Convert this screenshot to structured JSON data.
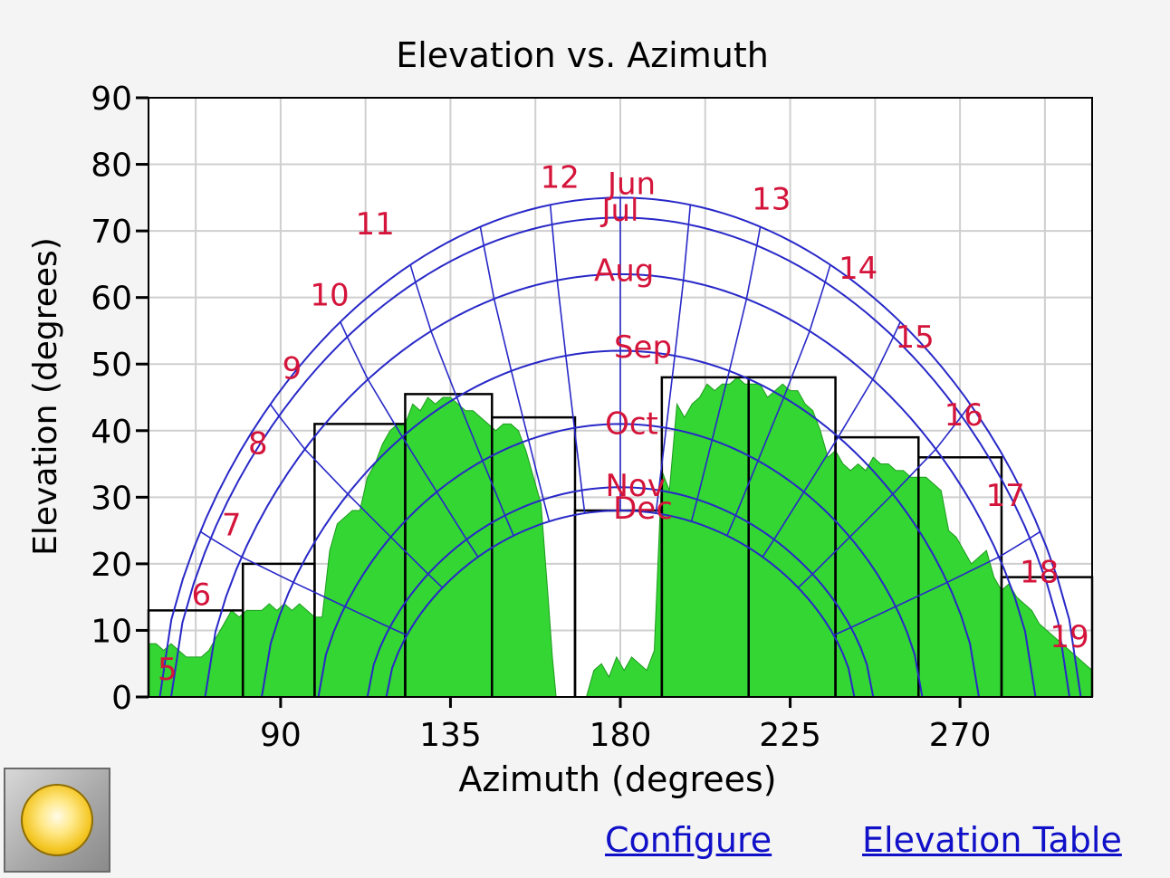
{
  "chart_data": {
    "type": "area",
    "title": "Elevation vs. Azimuth",
    "xlabel": "Azimuth (degrees)",
    "ylabel": "Elevation (degrees)",
    "xlim": [
      55,
      305
    ],
    "ylim": [
      0,
      90
    ],
    "xticks": [
      90,
      135,
      180,
      225,
      270
    ],
    "yticks": [
      0,
      10,
      20,
      30,
      40,
      50,
      60,
      70,
      80,
      90
    ],
    "grid": true,
    "colors": {
      "horizon_fill": "#33d633",
      "sun_path": "#2828c8",
      "label": "#d4143a",
      "grid": "#cfcfcf",
      "bins": "#000000"
    },
    "horizon_profile": {
      "x": [
        55,
        57,
        59,
        61,
        63,
        65,
        67,
        69,
        71,
        73,
        75,
        77,
        79,
        81,
        83,
        85,
        87,
        89,
        91,
        93,
        95,
        97,
        99,
        101,
        103,
        105,
        107,
        109,
        111,
        113,
        115,
        117,
        119,
        121,
        123,
        125,
        127,
        129,
        131,
        133,
        135,
        137,
        139,
        141,
        143,
        145,
        147,
        149,
        151,
        153,
        155,
        157,
        159,
        161,
        162,
        163,
        165,
        167,
        169,
        171,
        173,
        175,
        177,
        179,
        181,
        183,
        185,
        187,
        189,
        191,
        193,
        195,
        197,
        199,
        201,
        203,
        205,
        207,
        209,
        211,
        213,
        215,
        217,
        219,
        221,
        223,
        225,
        227,
        229,
        231,
        233,
        235,
        237,
        239,
        241,
        243,
        245,
        247,
        249,
        251,
        253,
        255,
        257,
        259,
        261,
        263,
        265,
        267,
        269,
        271,
        273,
        275,
        277,
        279,
        281,
        283,
        285,
        287,
        289,
        291,
        293,
        295,
        297,
        299,
        301,
        303,
        305
      ],
      "y": [
        8,
        8,
        7,
        8,
        7,
        6,
        6,
        6,
        7,
        9,
        11,
        13,
        12,
        13,
        13,
        13,
        14,
        13,
        14,
        13,
        14,
        13,
        12,
        12,
        22,
        26,
        27,
        28,
        28,
        33,
        35,
        38,
        40,
        41,
        41,
        44,
        43,
        45,
        44,
        45,
        45,
        44,
        43,
        43,
        42,
        41,
        40,
        41,
        41,
        40,
        37,
        33,
        29,
        14,
        6,
        0,
        0,
        0,
        0,
        0,
        4,
        5,
        3,
        6,
        4,
        6,
        5,
        4,
        7,
        34,
        31,
        44,
        42,
        44,
        45,
        47,
        46,
        47,
        47,
        48,
        47,
        47,
        47,
        45,
        46,
        47,
        46,
        46,
        44,
        43,
        40,
        36,
        37,
        35,
        34,
        35,
        34,
        36,
        35,
        35,
        34,
        34,
        33,
        33,
        33,
        32,
        31,
        25,
        24,
        22,
        20,
        21,
        22,
        18,
        16,
        17,
        15,
        14,
        13,
        11,
        10,
        9,
        8,
        7,
        6,
        5,
        4
      ]
    },
    "horizon_bins": [
      {
        "azimuth": [
          55,
          80
        ],
        "elevation": 13
      },
      {
        "azimuth": [
          80,
          99
        ],
        "elevation": 20
      },
      {
        "azimuth": [
          99,
          123
        ],
        "elevation": 41
      },
      {
        "azimuth": [
          123,
          146
        ],
        "elevation": 45.5
      },
      {
        "azimuth": [
          146,
          168
        ],
        "elevation": 42
      },
      {
        "azimuth": [
          168,
          191
        ],
        "elevation": 28
      },
      {
        "azimuth": [
          191,
          214
        ],
        "elevation": 48
      },
      {
        "azimuth": [
          214,
          237
        ],
        "elevation": 48
      },
      {
        "azimuth": [
          237,
          259
        ],
        "elevation": 39
      },
      {
        "azimuth": [
          259,
          281
        ],
        "elevation": 36
      },
      {
        "azimuth": [
          281,
          305
        ],
        "elevation": 18
      }
    ],
    "sun_paths": [
      {
        "name": "Jun",
        "max_elevation": 75,
        "rise_azimuth": 58,
        "set_azimuth": 302
      },
      {
        "name": "Jul",
        "max_elevation": 72,
        "rise_azimuth": 61,
        "set_azimuth": 299
      },
      {
        "name": "Aug",
        "max_elevation": 63.5,
        "rise_azimuth": 70,
        "set_azimuth": 290
      },
      {
        "name": "Sep",
        "max_elevation": 52,
        "rise_azimuth": 85,
        "set_azimuth": 275
      },
      {
        "name": "Oct",
        "max_elevation": 41,
        "rise_azimuth": 100,
        "set_azimuth": 260
      },
      {
        "name": "Nov",
        "max_elevation": 31.5,
        "rise_azimuth": 113,
        "set_azimuth": 247
      },
      {
        "name": "Dec",
        "max_elevation": 28,
        "rise_azimuth": 118,
        "set_azimuth": 242
      }
    ],
    "month_labels": [
      {
        "text": "Jun",
        "x": 183,
        "y": 75.5
      },
      {
        "text": "Jul",
        "x": 180,
        "y": 71.5
      },
      {
        "text": "Aug",
        "x": 181,
        "y": 62.5
      },
      {
        "text": "Sep",
        "x": 186,
        "y": 51
      },
      {
        "text": "Oct",
        "x": 183,
        "y": 39.5
      },
      {
        "text": "Nov",
        "x": 184,
        "y": 30.2
      },
      {
        "text": "Dec",
        "x": 186,
        "y": 26.8
      }
    ],
    "hour_labels": [
      {
        "text": "5",
        "x": 60,
        "y": 2.6
      },
      {
        "text": "6",
        "x": 69,
        "y": 13.8
      },
      {
        "text": "7",
        "x": 77,
        "y": 24.3
      },
      {
        "text": "8",
        "x": 84,
        "y": 36.5
      },
      {
        "text": "9",
        "x": 93,
        "y": 47.8
      },
      {
        "text": "10",
        "x": 103,
        "y": 58.8
      },
      {
        "text": "11",
        "x": 115,
        "y": 69.5
      },
      {
        "text": "12",
        "x": 164,
        "y": 76.5
      },
      {
        "text": "13",
        "x": 220,
        "y": 73.2
      },
      {
        "text": "14",
        "x": 243,
        "y": 62.8
      },
      {
        "text": "15",
        "x": 258,
        "y": 52.5
      },
      {
        "text": "16",
        "x": 271,
        "y": 40.8
      },
      {
        "text": "17",
        "x": 282,
        "y": 28.7
      },
      {
        "text": "18",
        "x": 291,
        "y": 17.2
      },
      {
        "text": "19",
        "x": 299,
        "y": 7.5
      }
    ]
  },
  "links": {
    "configure": "Configure",
    "elevation_table": "Elevation Table"
  },
  "icons": {
    "sun_button": "sun-icon"
  }
}
